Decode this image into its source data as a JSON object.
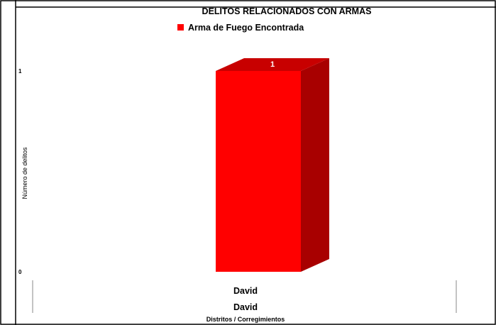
{
  "chart_data": {
    "type": "bar",
    "title": "DELITOS RELACIONADOS CON ARMAS",
    "ylabel": "Número de delitos",
    "xlabel": "Distritos / Corregimientos",
    "categories": [
      "David"
    ],
    "category_group": "David",
    "series": [
      {
        "name": "Arma de Fuego Encontrada",
        "values": [
          1
        ],
        "color": "#ff0000"
      }
    ],
    "yticks": [
      0,
      1
    ],
    "ylim": [
      0,
      1
    ],
    "grid": false,
    "legend_position": "top",
    "bar_style": "3d",
    "bar_front_color": "#ff0000",
    "bar_side_color": "#a80000",
    "bar_top_color": "#c80000",
    "data_label_color": "#ffffff"
  }
}
